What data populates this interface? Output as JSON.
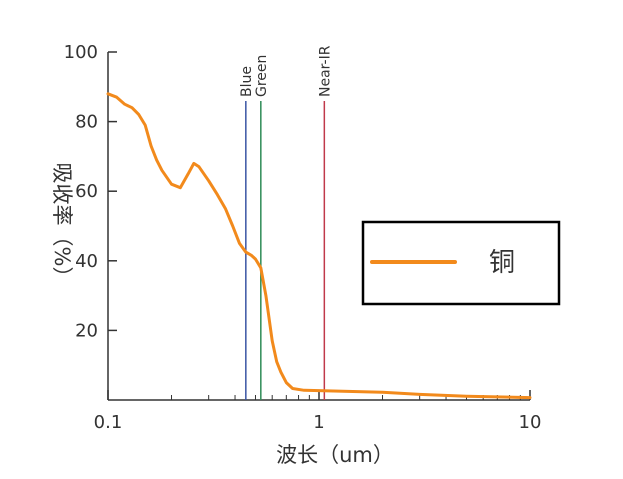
{
  "chart_data": {
    "type": "line",
    "xlabel": "波长（um）",
    "ylabel": "吸收率（%）",
    "xscale": "log",
    "xlim": [
      0.1,
      10
    ],
    "ylim": [
      0,
      100
    ],
    "x_ticks": [
      0.1,
      1,
      10
    ],
    "x_tick_labels": [
      "0.1",
      "1",
      "10"
    ],
    "y_ticks": [
      20,
      40,
      60,
      80,
      100
    ],
    "y_tick_labels": [
      "20",
      "40",
      "60",
      "80",
      "100"
    ],
    "grid": false,
    "legend_position": "right",
    "series": [
      {
        "name": "铜",
        "color": "#f28a1c",
        "x": [
          0.1,
          0.11,
          0.12,
          0.13,
          0.14,
          0.15,
          0.16,
          0.17,
          0.18,
          0.2,
          0.22,
          0.24,
          0.255,
          0.27,
          0.3,
          0.33,
          0.36,
          0.39,
          0.42,
          0.45,
          0.48,
          0.5,
          0.53,
          0.56,
          0.6,
          0.63,
          0.66,
          0.7,
          0.75,
          0.85,
          1.0,
          1.3,
          2.0,
          3.0,
          5.0,
          10.0
        ],
        "y": [
          88,
          87,
          85,
          84,
          82,
          79,
          73,
          69,
          66,
          62,
          61,
          65,
          68,
          67,
          63,
          59,
          55,
          50,
          45,
          42.5,
          41.5,
          40.5,
          38,
          30,
          17,
          11,
          8,
          5,
          3.3,
          2.8,
          2.7,
          2.5,
          2.2,
          1.6,
          1.1,
          0.7
        ]
      }
    ],
    "annotations": [
      {
        "label": "Blue",
        "x": 0.45,
        "color": "#3a55a4"
      },
      {
        "label": "Green",
        "x": 0.53,
        "color": "#2e8b57"
      },
      {
        "label": "Near-IR",
        "x": 1.06,
        "color": "#c0394b"
      }
    ]
  }
}
